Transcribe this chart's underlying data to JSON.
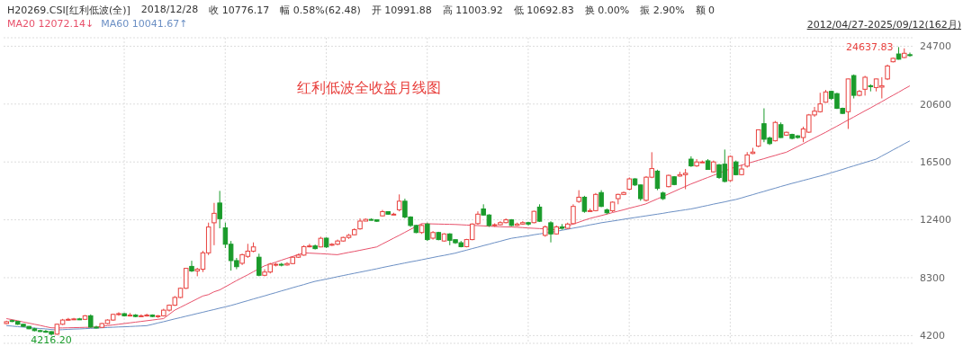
{
  "chart_data": {
    "type": "candlestick",
    "title": "红利低波全收益月线图",
    "annotations": [
      "H20269.CSI[红利低波(全)]",
      "2018/12/28",
      "收 10776.17",
      "幅 0.58%(62.48)",
      "开 10991.88",
      "高 11003.92",
      "低 10692.83",
      "换 0.00%",
      "振 2.90%",
      "额 0",
      "12072.14↓",
      "10041.67↑",
      "2012/04/27-2025/09/12(162月)",
      "24637.83",
      "4216.20"
    ],
    "categories": [
      null,
      null,
      null,
      null,
      null,
      null,
      null,
      null,
      null,
      null,
      null,
      null,
      null,
      null,
      null,
      null,
      null,
      null,
      null,
      null,
      null,
      null,
      null,
      null,
      null,
      null,
      null,
      null,
      null,
      null,
      null,
      null,
      null,
      null,
      null,
      null,
      null,
      null,
      null,
      null,
      null,
      null,
      null,
      null,
      null,
      null,
      null,
      null,
      null,
      null,
      null,
      null,
      null,
      null,
      null,
      null,
      null,
      null,
      null,
      null,
      null,
      null,
      null,
      null,
      null,
      null,
      null,
      null,
      null,
      null,
      null,
      null,
      null,
      null,
      null,
      null,
      null,
      null,
      null,
      null,
      null,
      null,
      null,
      null,
      null,
      null,
      null,
      null,
      null,
      null,
      null,
      null,
      null,
      null,
      null,
      null,
      null,
      null,
      null,
      null,
      null,
      null,
      null,
      null,
      null,
      null,
      null,
      null,
      null,
      null,
      null,
      null,
      null,
      null,
      null,
      null,
      null,
      null,
      null,
      null,
      null,
      null,
      null,
      null,
      null,
      null,
      null,
      null,
      null,
      null,
      null,
      null,
      null,
      null,
      null,
      null,
      null,
      null,
      null,
      null,
      null,
      null,
      null,
      null,
      null,
      null,
      null,
      null,
      null,
      null,
      null,
      null,
      null,
      null,
      null,
      null,
      null,
      null,
      null,
      null,
      null,
      null
    ],
    "ohlc": [
      [
        5050,
        5250,
        5000,
        5180
      ],
      [
        5260,
        5320,
        5150,
        5200
      ],
      [
        5200,
        5220,
        4950,
        5000
      ],
      [
        5000,
        5020,
        4800,
        4850
      ],
      [
        4850,
        4870,
        4650,
        4680
      ],
      [
        4680,
        4750,
        4500,
        4550
      ],
      [
        4550,
        4620,
        4450,
        4500
      ],
      [
        4500,
        4600,
        4400,
        4480
      ],
      [
        4480,
        4500,
        4216.2,
        4300
      ],
      [
        4300,
        5050,
        4250,
        5000
      ],
      [
        5000,
        5380,
        4950,
        5300
      ],
      [
        5300,
        5450,
        5250,
        5350
      ],
      [
        5350,
        5450,
        5300,
        5380
      ],
      [
        5380,
        5450,
        5300,
        5350
      ],
      [
        5350,
        5650,
        5300,
        5600
      ],
      [
        5600,
        5700,
        4750,
        4800
      ],
      [
        4800,
        4900,
        4700,
        4780
      ],
      [
        4780,
        5100,
        4750,
        5050
      ],
      [
        5050,
        5350,
        5000,
        5300
      ],
      [
        5300,
        5750,
        5250,
        5700
      ],
      [
        5700,
        5850,
        5600,
        5750
      ],
      [
        5750,
        5800,
        5550,
        5600
      ],
      [
        5600,
        5800,
        5550,
        5650
      ],
      [
        5650,
        5720,
        5500,
        5550
      ],
      [
        5550,
        5700,
        5500,
        5600
      ],
      [
        5600,
        5750,
        5550,
        5650
      ],
      [
        5650,
        5700,
        5500,
        5550
      ],
      [
        5550,
        5650,
        5450,
        5600
      ],
      [
        5600,
        6100,
        5550,
        6000
      ],
      [
        6000,
        6400,
        5900,
        6350
      ],
      [
        6350,
        7000,
        6300,
        6900
      ],
      [
        6900,
        7600,
        6850,
        7550
      ],
      [
        7550,
        9000,
        7500,
        8960
      ],
      [
        9100,
        9500,
        8700,
        8780
      ],
      [
        8780,
        9000,
        8400,
        8900
      ],
      [
        8900,
        10200,
        8700,
        10060
      ],
      [
        10060,
        12200,
        9900,
        11890
      ],
      [
        12190,
        13600,
        10600,
        12860
      ],
      [
        13590,
        14450,
        11800,
        12480
      ],
      [
        11830,
        12200,
        10400,
        10670
      ],
      [
        10670,
        10900,
        8800,
        9510
      ],
      [
        9510,
        9700,
        8900,
        9080
      ],
      [
        9320,
        10000,
        9200,
        9930
      ],
      [
        9810,
        10700,
        9700,
        10180
      ],
      [
        10180,
        10800,
        10100,
        10480
      ],
      [
        9750,
        10000,
        8400,
        8470
      ],
      [
        8470,
        8900,
        8400,
        8700
      ],
      [
        8700,
        9350,
        8600,
        9260
      ],
      [
        9200,
        9350,
        9100,
        9250
      ],
      [
        9250,
        9350,
        9100,
        9200
      ],
      [
        9200,
        9400,
        9150,
        9300
      ],
      [
        9300,
        9800,
        9250,
        9750
      ],
      [
        9750,
        10000,
        9700,
        9900
      ],
      [
        9900,
        10600,
        9850,
        10500
      ],
      [
        10500,
        10700,
        10450,
        10550
      ],
      [
        10550,
        10650,
        10300,
        10360
      ],
      [
        10480,
        11200,
        10450,
        11090
      ],
      [
        11100,
        11150,
        10400,
        10480
      ],
      [
        10600,
        10750,
        10550,
        10670
      ],
      [
        10670,
        11000,
        10600,
        10900
      ],
      [
        10900,
        11200,
        10850,
        11150
      ],
      [
        11150,
        11400,
        11050,
        11300
      ],
      [
        11340,
        11800,
        11300,
        11700
      ],
      [
        11760,
        12500,
        11700,
        12310
      ],
      [
        12310,
        12500,
        12300,
        12430
      ],
      [
        12430,
        12500,
        12350,
        12400
      ],
      [
        12400,
        12420,
        12250,
        12300
      ],
      [
        12680,
        13100,
        12650,
        12980
      ],
      [
        12980,
        13000,
        12750,
        12800
      ],
      [
        12800,
        12900,
        12750,
        12800
      ],
      [
        13110,
        14200,
        13000,
        13720
      ],
      [
        13720,
        13900,
        12500,
        12600
      ],
      [
        12600,
        12650,
        11900,
        12000
      ],
      [
        12000,
        12050,
        11450,
        11500
      ],
      [
        11500,
        12100,
        11400,
        12000
      ],
      [
        12100,
        12200,
        10900,
        11000
      ],
      [
        11100,
        11600,
        11000,
        11500
      ],
      [
        11500,
        11550,
        10950,
        11000
      ],
      [
        10900,
        11450,
        10850,
        11400
      ],
      [
        11400,
        11450,
        10600,
        10950
      ],
      [
        10991.88,
        11003.92,
        10692.83,
        10776.17
      ],
      [
        10776,
        10900,
        10450,
        10500
      ],
      [
        10500,
        11050,
        10450,
        11000
      ],
      [
        11000,
        12150,
        10950,
        12100
      ],
      [
        12130,
        13000,
        12050,
        12800
      ],
      [
        13170,
        13500,
        12700,
        12740
      ],
      [
        12740,
        12800,
        11900,
        12000
      ],
      [
        12000,
        12150,
        11900,
        12050
      ],
      [
        12050,
        12300,
        12000,
        12200
      ],
      [
        12200,
        12500,
        12150,
        12400
      ],
      [
        12400,
        12450,
        11950,
        12000
      ],
      [
        12000,
        12200,
        11950,
        12100
      ],
      [
        12100,
        12300,
        12050,
        12200
      ],
      [
        12200,
        12250,
        12000,
        12100
      ],
      [
        12200,
        13050,
        12150,
        13000
      ],
      [
        13300,
        13500,
        12250,
        12300
      ],
      [
        11300,
        12000,
        11200,
        11900
      ],
      [
        12190,
        12300,
        10800,
        11400
      ],
      [
        11400,
        12000,
        11350,
        11900
      ],
      [
        11900,
        12100,
        11700,
        11800
      ],
      [
        11800,
        12200,
        11750,
        12100
      ],
      [
        12130,
        13500,
        12100,
        13350
      ],
      [
        13700,
        14500,
        13600,
        14000
      ],
      [
        14000,
        14100,
        12900,
        13000
      ],
      [
        13000,
        13200,
        12950,
        13050
      ],
      [
        13050,
        14300,
        13000,
        14200
      ],
      [
        14330,
        14500,
        13300,
        13350
      ],
      [
        13100,
        13200,
        12800,
        12900
      ],
      [
        13040,
        13700,
        12950,
        13650
      ],
      [
        13900,
        14250,
        13500,
        14200
      ],
      [
        14200,
        14400,
        14150,
        14330
      ],
      [
        14570,
        15400,
        14500,
        15300
      ],
      [
        15300,
        15350,
        14800,
        14870
      ],
      [
        14870,
        14900,
        13750,
        13900
      ],
      [
        13780,
        15500,
        13700,
        15420
      ],
      [
        15420,
        17190,
        15350,
        16030
      ],
      [
        15850,
        15950,
        14500,
        14630
      ],
      [
        14300,
        14400,
        13800,
        13900
      ],
      [
        14750,
        15600,
        14700,
        15550
      ],
      [
        15450,
        15500,
        14850,
        14900
      ],
      [
        15500,
        15800,
        15450,
        15600
      ],
      [
        15600,
        16000,
        14570,
        15700
      ],
      [
        16700,
        16900,
        16150,
        16220
      ],
      [
        16220,
        16700,
        16150,
        16500
      ],
      [
        16500,
        16600,
        16450,
        16500
      ],
      [
        16580,
        16700,
        15950,
        15970
      ],
      [
        15800,
        16600,
        15750,
        16500
      ],
      [
        16300,
        16350,
        15300,
        15400
      ],
      [
        16340,
        17380,
        15050,
        15120
      ],
      [
        15180,
        16950,
        15100,
        16890
      ],
      [
        16500,
        16600,
        15550,
        15600
      ],
      [
        15600,
        16300,
        15550,
        16000
      ],
      [
        16200,
        17200,
        16100,
        17000
      ],
      [
        17100,
        17500,
        17050,
        17200
      ],
      [
        17620,
        18800,
        17550,
        18780
      ],
      [
        19210,
        20300,
        17900,
        18110
      ],
      [
        18200,
        18300,
        17700,
        17800
      ],
      [
        18000,
        19400,
        17950,
        19300
      ],
      [
        19140,
        19300,
        18200,
        18230
      ],
      [
        18400,
        18650,
        18350,
        18600
      ],
      [
        18450,
        18500,
        18100,
        18170
      ],
      [
        18350,
        18400,
        18150,
        18230
      ],
      [
        18230,
        19000,
        17900,
        18840
      ],
      [
        18610,
        19900,
        18550,
        19830
      ],
      [
        19830,
        20400,
        19700,
        20100
      ],
      [
        20060,
        21400,
        20000,
        20610
      ],
      [
        20730,
        21600,
        20700,
        21460
      ],
      [
        21500,
        21550,
        20900,
        21000
      ],
      [
        21340,
        21400,
        20250,
        20300
      ],
      [
        20300,
        20350,
        19900,
        19940
      ],
      [
        20060,
        22400,
        18840,
        22380
      ],
      [
        22620,
        22700,
        21000,
        21220
      ],
      [
        21220,
        21600,
        21150,
        21500
      ],
      [
        21650,
        22600,
        21200,
        22500
      ],
      [
        21900,
        22000,
        21500,
        21850
      ],
      [
        21770,
        22400,
        21500,
        22380
      ],
      [
        21800,
        22500,
        21000,
        21900
      ],
      [
        22380,
        23400,
        22300,
        23300
      ],
      [
        23600,
        23900,
        23550,
        23840
      ],
      [
        24150,
        24637.83,
        23750,
        23780
      ],
      [
        23900,
        24550,
        23850,
        24200
      ],
      [
        24100,
        24250,
        23950,
        24050
      ]
    ],
    "colors": [
      "#e8413e",
      "#1a9b2b",
      "#1a9b2b",
      "#1a9b2b",
      "#1a9b2b",
      "#1a9b2b",
      "#1a9b2b",
      "#1a9b2b",
      "#1a9b2b",
      "#e8413e",
      "#e8413e",
      "#e8413e",
      "#e8413e",
      "#1a9b2b",
      "#e8413e",
      "#1a9b2b",
      "#1a9b2b",
      "#e8413e",
      "#e8413e",
      "#e8413e",
      "#e8413e",
      "#1a9b2b",
      "#e8413e",
      "#1a9b2b",
      "#e8413e",
      "#e8413e",
      "#1a9b2b",
      "#e8413e",
      "#e8413e",
      "#e8413e",
      "#e8413e",
      "#e8413e",
      "#e8413e",
      "#1a9b2b",
      "#e8413e",
      "#e8413e",
      "#e8413e",
      "#e8413e",
      "#1a9b2b",
      "#1a9b2b",
      "#1a9b2b",
      "#1a9b2b",
      "#e8413e",
      "#e8413e",
      "#e8413e",
      "#1a9b2b",
      "#e8413e",
      "#e8413e",
      "#e8413e",
      "#1a9b2b",
      "#e8413e",
      "#e8413e",
      "#e8413e",
      "#e8413e",
      "#e8413e",
      "#1a9b2b",
      "#e8413e",
      "#1a9b2b",
      "#e8413e",
      "#e8413e",
      "#e8413e",
      "#e8413e",
      "#e8413e",
      "#e8413e",
      "#e8413e",
      "#1a9b2b",
      "#1a9b2b",
      "#e8413e",
      "#1a9b2b",
      "#e8413e",
      "#e8413e",
      "#1a9b2b",
      "#1a9b2b",
      "#1a9b2b",
      "#e8413e",
      "#1a9b2b",
      "#e8413e",
      "#1a9b2b",
      "#e8413e",
      "#1a9b2b",
      "#1a9b2b",
      "#1a9b2b",
      "#e8413e",
      "#e8413e",
      "#e8413e",
      "#1a9b2b",
      "#1a9b2b",
      "#e8413e",
      "#e8413e",
      "#e8413e",
      "#1a9b2b",
      "#e8413e",
      "#e8413e",
      "#1a9b2b",
      "#e8413e",
      "#1a9b2b",
      "#e8413e",
      "#1a9b2b",
      "#e8413e",
      "#1a9b2b",
      "#e8413e",
      "#e8413e",
      "#e8413e",
      "#1a9b2b",
      "#e8413e",
      "#e8413e",
      "#1a9b2b",
      "#1a9b2b",
      "#e8413e",
      "#e8413e",
      "#e8413e",
      "#e8413e",
      "#1a9b2b",
      "#1a9b2b",
      "#e8413e",
      "#e8413e",
      "#1a9b2b",
      "#1a9b2b",
      "#e8413e",
      "#1a9b2b",
      "#e8413e",
      "#e8413e",
      "#1a9b2b",
      "#e8413e",
      "#e8413e",
      "#1a9b2b",
      "#e8413e",
      "#1a9b2b",
      "#1a9b2b",
      "#e8413e",
      "#1a9b2b",
      "#e8413e",
      "#e8413e",
      "#e8413e",
      "#e8413e",
      "#1a9b2b",
      "#1a9b2b",
      "#e8413e",
      "#1a9b2b",
      "#e8413e",
      "#1a9b2b",
      "#1a9b2b",
      "#e8413e",
      "#e8413e",
      "#e8413e",
      "#e8413e",
      "#e8413e",
      "#1a9b2b",
      "#1a9b2b",
      "#1a9b2b",
      "#e8413e",
      "#1a9b2b",
      "#e8413e",
      "#e8413e",
      "#1a9b2b",
      "#e8413e",
      "#e8413e",
      "#e8413e",
      "#e8413e",
      "#1a9b2b",
      "#e8413e",
      "#1a9b2b"
    ],
    "series": [
      {
        "name": "MA20",
        "type": "line",
        "color": "#e8506a",
        "values": [
          5400,
          5330,
          5250,
          5160,
          5080,
          5000,
          4920,
          4830,
          4750,
          4740,
          4740,
          4750,
          4760,
          4770,
          4780,
          4790,
          4800,
          4850,
          4900,
          4950,
          5000,
          5050,
          5100,
          5150,
          5200,
          5250,
          5300,
          5350,
          5400,
          5700,
          6000,
          6200,
          6400,
          6600,
          6800,
          7000,
          7100,
          7300,
          7430,
          7650,
          7870,
          8090,
          8300,
          8500,
          8720,
          8930,
          9140,
          9270,
          9400,
          9540,
          9670,
          9800,
          9930,
          10060,
          10040,
          10020,
          10000,
          9980,
          9950,
          9930,
          10010,
          10090,
          10160,
          10240,
          10320,
          10400,
          10480,
          10690,
          10890,
          11100,
          11300,
          11510,
          11720,
          11920,
          12130,
          12120,
          12110,
          12100,
          12090,
          12080,
          12070,
          12050,
          12030,
          12010,
          11990,
          11970,
          11950,
          11930,
          11910,
          11900,
          11890,
          11870,
          11850,
          11820,
          11800,
          11780,
          11750,
          11720,
          11700,
          11830,
          11970,
          12100,
          12230,
          12370,
          12500,
          12600,
          12700,
          12800,
          12910,
          13010,
          13110,
          13220,
          13320,
          13420,
          13530,
          13710,
          13880,
          14060,
          14230,
          14410,
          14590,
          14760,
          14940,
          15090,
          15250,
          15400,
          15550,
          15700,
          15860,
          16010,
          16160,
          16270,
          16390,
          16500,
          16620,
          16730,
          16850,
          16960,
          17080,
          17190,
          17390,
          17590,
          17790,
          18000,
          18200,
          18400,
          18600,
          18820,
          19030,
          19250,
          19470,
          19680,
          19900,
          20120,
          20330,
          20550,
          20770,
          21000,
          21220,
          21440,
          21670,
          21890
        ]
      },
      {
        "name": "MA60",
        "type": "line",
        "color": "#6b8fc4",
        "values": [
          4900,
          4870,
          4830,
          4800,
          4770,
          4730,
          4700,
          4670,
          4630,
          4600,
          4620,
          4640,
          4660,
          4670,
          4690,
          4710,
          4730,
          4750,
          4770,
          4790,
          4810,
          4820,
          4840,
          4860,
          4880,
          4900,
          4990,
          5090,
          5180,
          5280,
          5380,
          5470,
          5570,
          5660,
          5760,
          5850,
          5950,
          6040,
          6140,
          6230,
          6330,
          6440,
          6560,
          6670,
          6790,
          6900,
          7010,
          7130,
          7240,
          7360,
          7470,
          7590,
          7700,
          7810,
          7930,
          8040,
          8120,
          8200,
          8280,
          8370,
          8450,
          8530,
          8610,
          8690,
          8770,
          8850,
          8930,
          9020,
          9100,
          9180,
          9260,
          9340,
          9420,
          9490,
          9570,
          9650,
          9730,
          9810,
          9880,
          9960,
          10040,
          10150,
          10250,
          10360,
          10460,
          10570,
          10670,
          10780,
          10880,
          10990,
          11090,
          11150,
          11210,
          11270,
          11340,
          11400,
          11460,
          11520,
          11580,
          11660,
          11730,
          11810,
          11880,
          11960,
          12040,
          12110,
          12190,
          12250,
          12310,
          12370,
          12440,
          12500,
          12560,
          12620,
          12680,
          12740,
          12800,
          12860,
          12930,
          12990,
          13050,
          13110,
          13170,
          13250,
          13340,
          13420,
          13510,
          13590,
          13670,
          13760,
          13840,
          13950,
          14070,
          14180,
          14300,
          14410,
          14530,
          14640,
          14760,
          14870,
          14980,
          15080,
          15190,
          15290,
          15400,
          15500,
          15610,
          15730,
          15850,
          15970,
          16100,
          16220,
          16340,
          16460,
          16580,
          16700,
          16920,
          17130,
          17350,
          17560,
          17780,
          17990
        ]
      }
    ],
    "ylim": [
      3650,
      25300
    ],
    "yticks": [
      4200,
      8300,
      12400,
      16500,
      20600,
      24700
    ],
    "grid": true,
    "legend": "top left",
    "tick_labels": "y",
    "marker": "none",
    "line_style": "solid"
  }
}
